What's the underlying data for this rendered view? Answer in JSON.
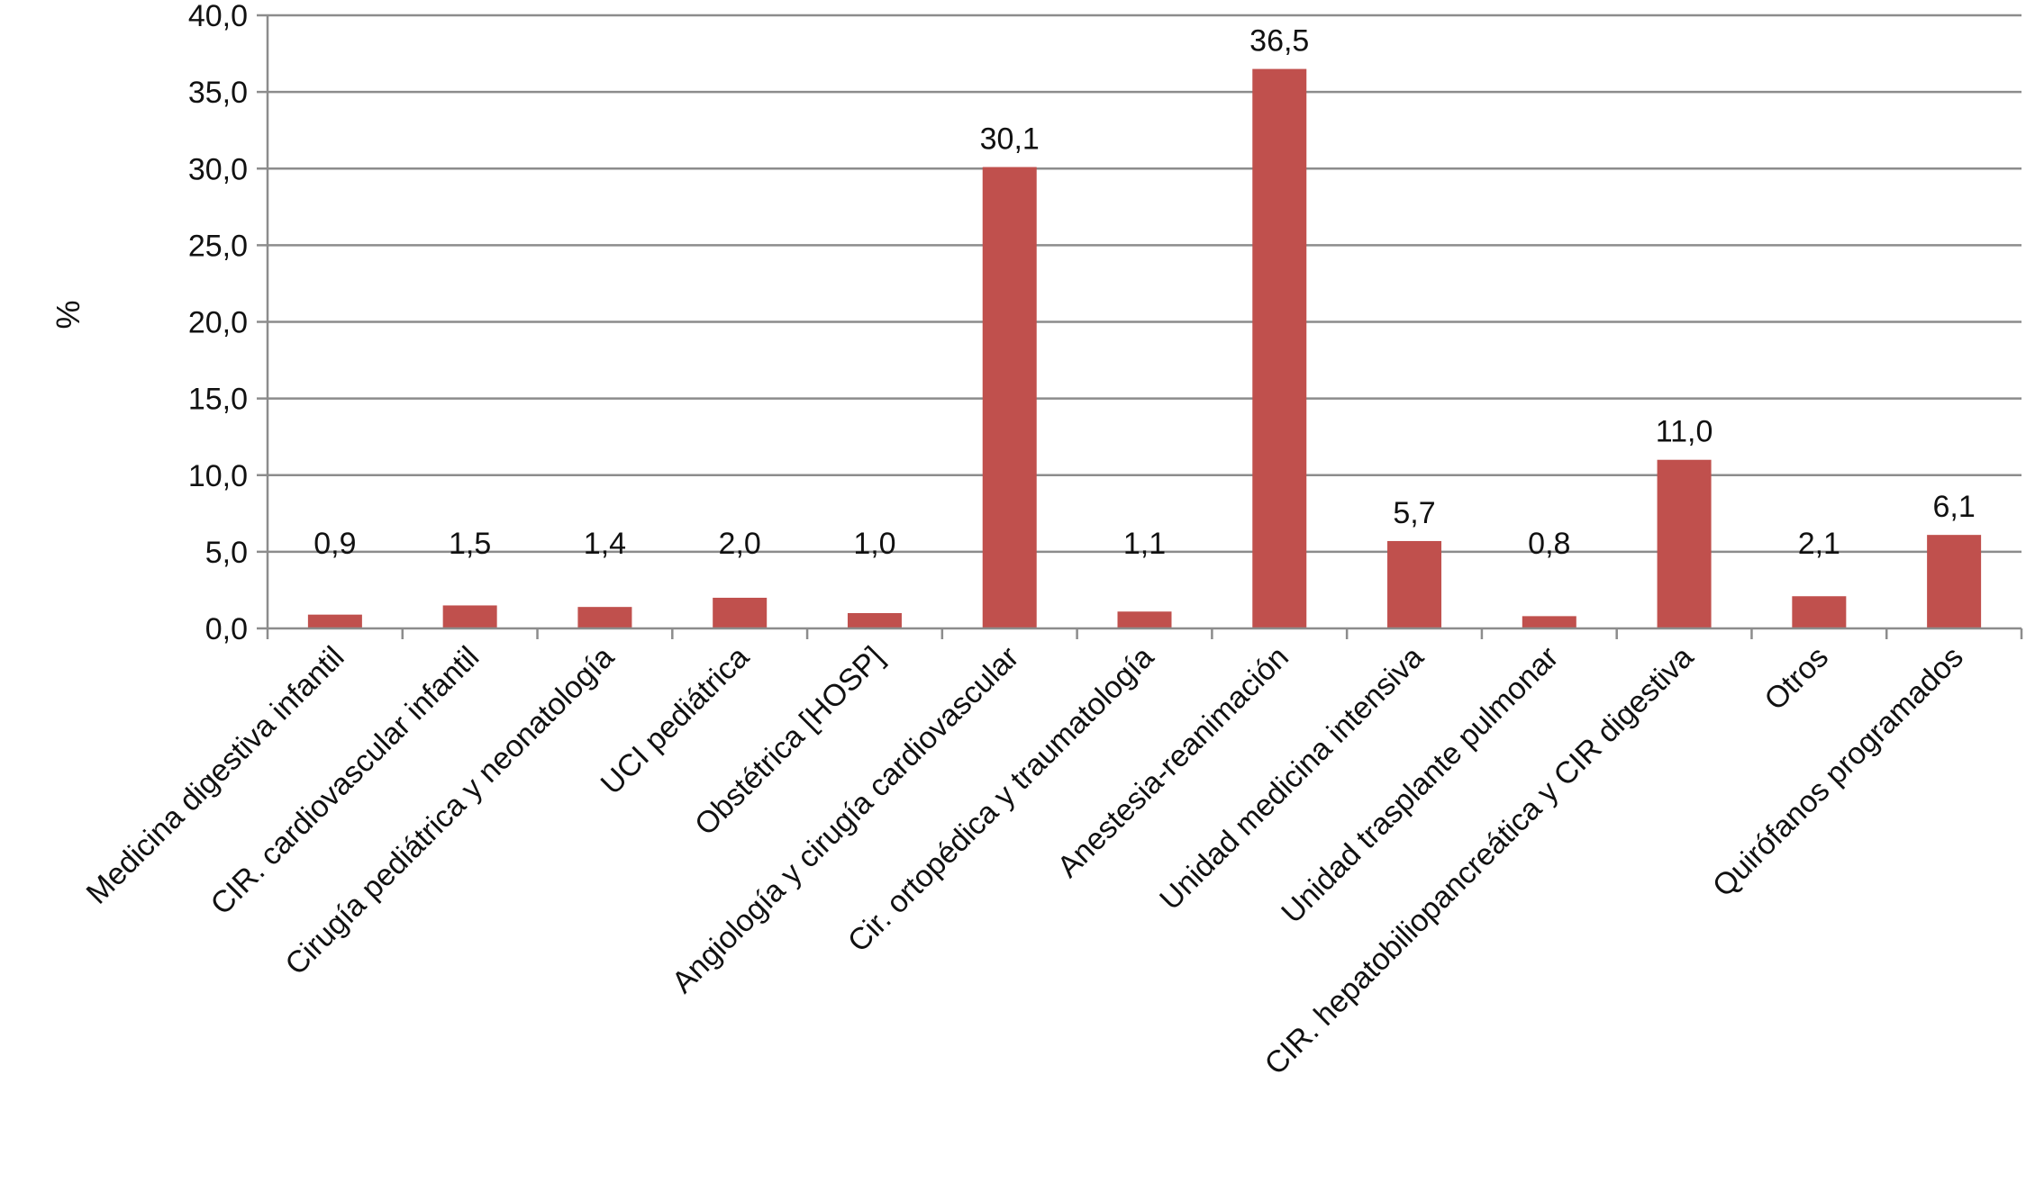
{
  "chart_data": {
    "type": "bar",
    "ylabel": "%",
    "xlabel": "",
    "ylim": [
      0,
      40
    ],
    "ytick_step": 5,
    "grid": true,
    "bar_color": "#C0504D",
    "grid_color": "#8C8C8C",
    "categories": [
      "Medicina digestiva infantil",
      "CIR. cardiovascular infantil",
      "Cirugía pediátrica y neonatología",
      "UCI pediátrica",
      "Obstétrica [HOSP]",
      "Angiología y cirugía cardiovascular",
      "Cir. ortopédica y traumatología",
      "Anestesia-reanimación",
      "Unidad medicina intensiva",
      "Unidad trasplante pulmonar",
      "CIR. hepatobiliopancreática y CIR digestiva",
      "Otros",
      "Quirófanos programados"
    ],
    "values": [
      0.9,
      1.5,
      1.4,
      2.0,
      1.0,
      30.1,
      1.1,
      36.5,
      5.7,
      0.8,
      11.0,
      2.1,
      6.1
    ],
    "data_labels": [
      "0,9",
      "1,5",
      "1,4",
      "2,0",
      "1,0",
      "30,1",
      "1,1",
      "36,5",
      "5,7",
      "0,8",
      "11,0",
      "2,1",
      "6,1"
    ],
    "ytick_labels": [
      "0,0",
      "5,0",
      "10,0",
      "15,0",
      "20,0",
      "25,0",
      "30,0",
      "35,0",
      "40,0"
    ]
  }
}
